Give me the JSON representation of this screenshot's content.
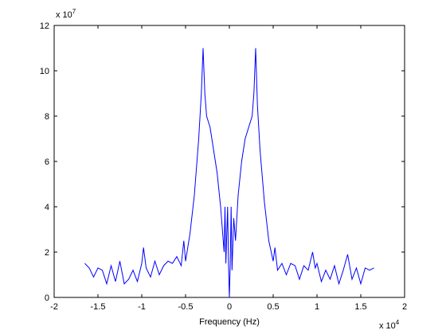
{
  "chart_data": {
    "type": "line",
    "xlabel": "Frequency (Hz)",
    "x_multiplier": {
      "base": "x 10",
      "exponent": "4"
    },
    "y_multiplier": {
      "base": "x 10",
      "exponent": "7"
    },
    "x": [
      -1.65,
      -1.6,
      -1.55,
      -1.5,
      -1.45,
      -1.4,
      -1.35,
      -1.3,
      -1.25,
      -1.2,
      -1.15,
      -1.1,
      -1.05,
      -1.0,
      -0.98,
      -0.95,
      -0.9,
      -0.85,
      -0.8,
      -0.75,
      -0.7,
      -0.65,
      -0.6,
      -0.55,
      -0.52,
      -0.5,
      -0.45,
      -0.4,
      -0.35,
      -0.32,
      -0.3,
      -0.28,
      -0.26,
      -0.22,
      -0.18,
      -0.14,
      -0.1,
      -0.08,
      -0.06,
      -0.05,
      -0.04,
      -0.02,
      -0.01,
      0,
      0.01,
      0.02,
      0.03,
      0.05,
      0.07,
      0.1,
      0.14,
      0.18,
      0.22,
      0.26,
      0.28,
      0.3,
      0.32,
      0.35,
      0.4,
      0.45,
      0.5,
      0.52,
      0.55,
      0.6,
      0.65,
      0.7,
      0.75,
      0.8,
      0.85,
      0.9,
      0.95,
      0.98,
      1.0,
      1.05,
      1.1,
      1.15,
      1.2,
      1.25,
      1.3,
      1.35,
      1.4,
      1.45,
      1.5,
      1.55,
      1.6,
      1.65
    ],
    "series": [
      {
        "color": "#0000ff",
        "values": [
          1.5,
          1.3,
          0.9,
          1.3,
          1.2,
          0.6,
          1.4,
          0.7,
          1.6,
          0.6,
          0.8,
          1.2,
          0.7,
          1.5,
          2.2,
          1.3,
          0.9,
          1.6,
          1.0,
          1.4,
          1.6,
          1.5,
          1.8,
          1.4,
          2.5,
          1.6,
          2.8,
          4.5,
          7.0,
          9.0,
          11.0,
          9.0,
          8.0,
          7.5,
          6.5,
          5.5,
          4.0,
          3.0,
          2.0,
          4.0,
          1.5,
          4.0,
          1.5,
          0,
          1.5,
          4.0,
          1.2,
          3.5,
          2.5,
          4.5,
          6.0,
          7.0,
          7.5,
          8.0,
          9.0,
          11.0,
          8.5,
          6.5,
          4.2,
          2.5,
          1.6,
          2.2,
          1.2,
          1.5,
          1.0,
          1.5,
          1.4,
          0.8,
          1.4,
          1.2,
          2.0,
          1.3,
          1.5,
          0.7,
          1.2,
          0.8,
          1.4,
          0.6,
          1.2,
          1.9,
          0.8,
          1.3,
          0.6,
          1.3,
          1.2,
          1.3
        ]
      }
    ],
    "xlim": [
      -2,
      2
    ],
    "xticks": [
      -2,
      -1.5,
      -1,
      -0.5,
      0,
      0.5,
      1,
      1.5,
      2
    ],
    "ylim": [
      0,
      12
    ],
    "yticks": [
      0,
      2,
      4,
      6,
      8,
      10,
      12
    ]
  }
}
